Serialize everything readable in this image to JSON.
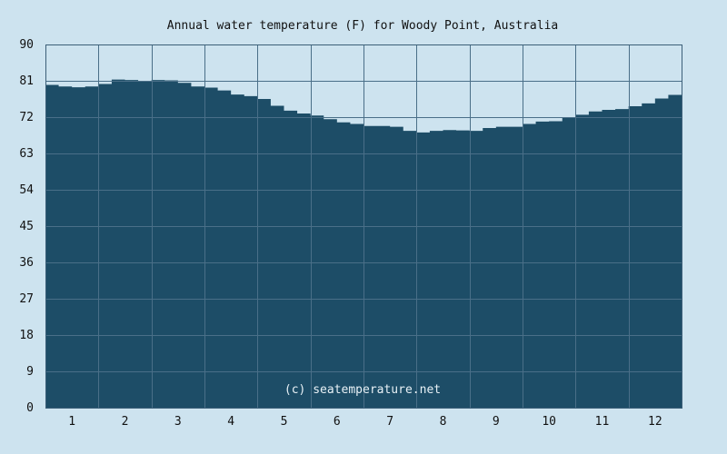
{
  "chart_data": {
    "type": "area",
    "title": "Annual water temperature (F) for Woody Point, Australia",
    "watermark": "(c) seatemperature.net",
    "xlabel": "",
    "ylabel": "",
    "x_ticks": [
      "1",
      "2",
      "3",
      "4",
      "5",
      "6",
      "7",
      "8",
      "9",
      "10",
      "11",
      "12"
    ],
    "y_ticks": [
      "0",
      "9",
      "18",
      "27",
      "36",
      "45",
      "54",
      "63",
      "72",
      "81",
      "90"
    ],
    "ylim": [
      0,
      90
    ],
    "xlim": [
      0,
      12
    ],
    "grid": true,
    "colors": {
      "background": "#cde3ef",
      "fill": "#1d4d67",
      "grid": "#4a6f88",
      "frame": "#3c5f78"
    },
    "series": [
      {
        "month": [
          0,
          0.25,
          0.5,
          0.75,
          1,
          1.25,
          1.5,
          1.75,
          2,
          2.25,
          2.5,
          2.75,
          3,
          3.25,
          3.5,
          3.75,
          4,
          4.25,
          4.5,
          4.75,
          5,
          5.25,
          5.5,
          5.75,
          6,
          6.25,
          6.5,
          6.75,
          7,
          7.25,
          7.5,
          7.75,
          8,
          8.25,
          8.5,
          8.75,
          9,
          9.25,
          9.5,
          9.75,
          10,
          10.25,
          10.5,
          10.75,
          11,
          11.25,
          11.5,
          11.75,
          12
        ],
        "values": [
          80.0,
          79.6,
          79.4,
          79.6,
          80.2,
          81.3,
          81.2,
          81.0,
          81.2,
          81.1,
          80.5,
          79.6,
          79.3,
          78.6,
          77.6,
          77.2,
          76.5,
          74.8,
          73.6,
          72.9,
          72.4,
          71.5,
          70.7,
          70.3,
          69.8,
          69.8,
          69.6,
          68.6,
          68.2,
          68.6,
          68.8,
          68.7,
          68.6,
          69.3,
          69.6,
          69.6,
          70.3,
          70.9,
          71.0,
          72.0,
          72.6,
          73.4,
          73.8,
          74.0,
          74.7,
          75.4,
          76.6,
          77.5,
          78.2
        ]
      }
    ]
  }
}
